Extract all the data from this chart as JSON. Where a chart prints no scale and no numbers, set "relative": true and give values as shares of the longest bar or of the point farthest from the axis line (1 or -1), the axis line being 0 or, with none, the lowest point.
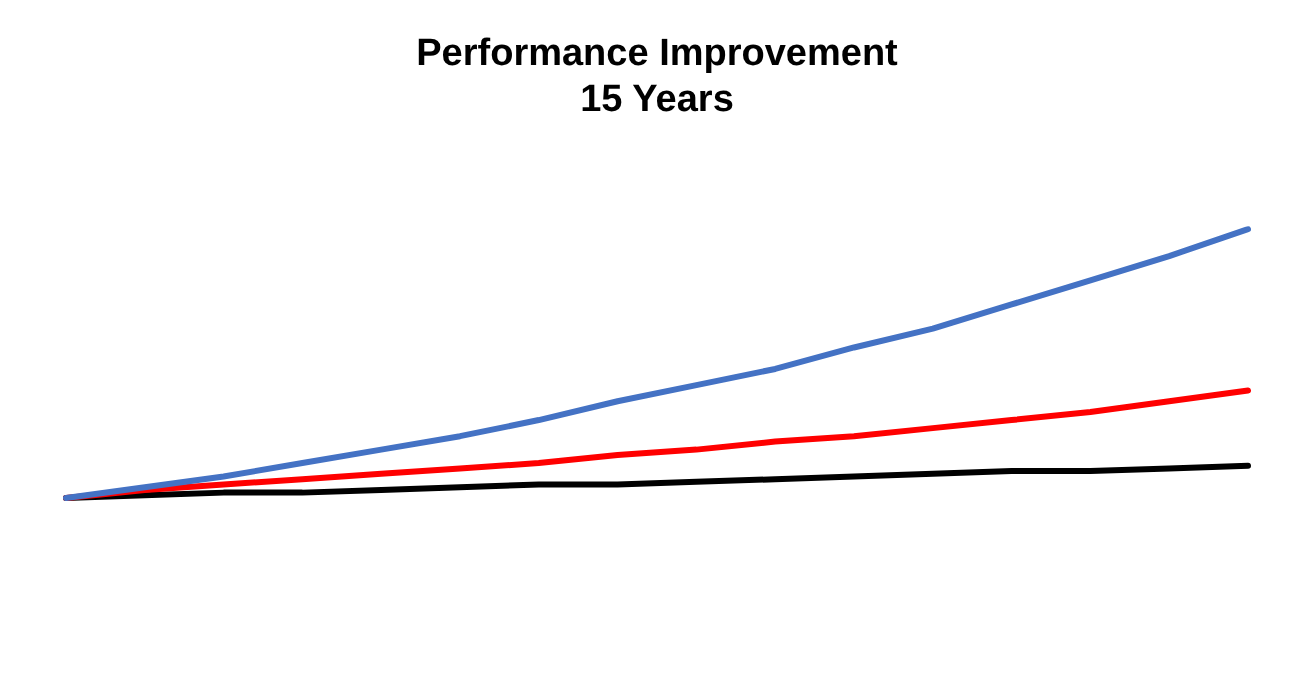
{
  "chart_data": {
    "type": "line",
    "title": "Performance Improvement\n15 Years",
    "relative": true,
    "categories": [
      null,
      null,
      null,
      null,
      null,
      null,
      null,
      null,
      null,
      null,
      null,
      null,
      null,
      null,
      null,
      null
    ],
    "series": [
      {
        "color": "#4472c4",
        "values": [
          0,
          0.04,
          0.08,
          0.13,
          0.18,
          0.23,
          0.29,
          0.36,
          0.42,
          0.48,
          0.56,
          0.63,
          0.72,
          0.81,
          0.9,
          1
        ]
      },
      {
        "color": "#ff0000",
        "values": [
          0,
          0.03,
          0.05,
          0.07,
          0.09,
          0.11,
          0.13,
          0.16,
          0.18,
          0.21,
          0.23,
          0.26,
          0.29,
          0.32,
          0.36,
          0.4
        ]
      },
      {
        "color": "#000000",
        "values": [
          0,
          0.01,
          0.02,
          0.02,
          0.03,
          0.04,
          0.05,
          0.05,
          0.06,
          0.07,
          0.08,
          0.09,
          0.1,
          0.1,
          0.11,
          0.12
        ]
      }
    ],
    "grid": false,
    "legend": false,
    "marker": "none",
    "line_style": "solid"
  }
}
